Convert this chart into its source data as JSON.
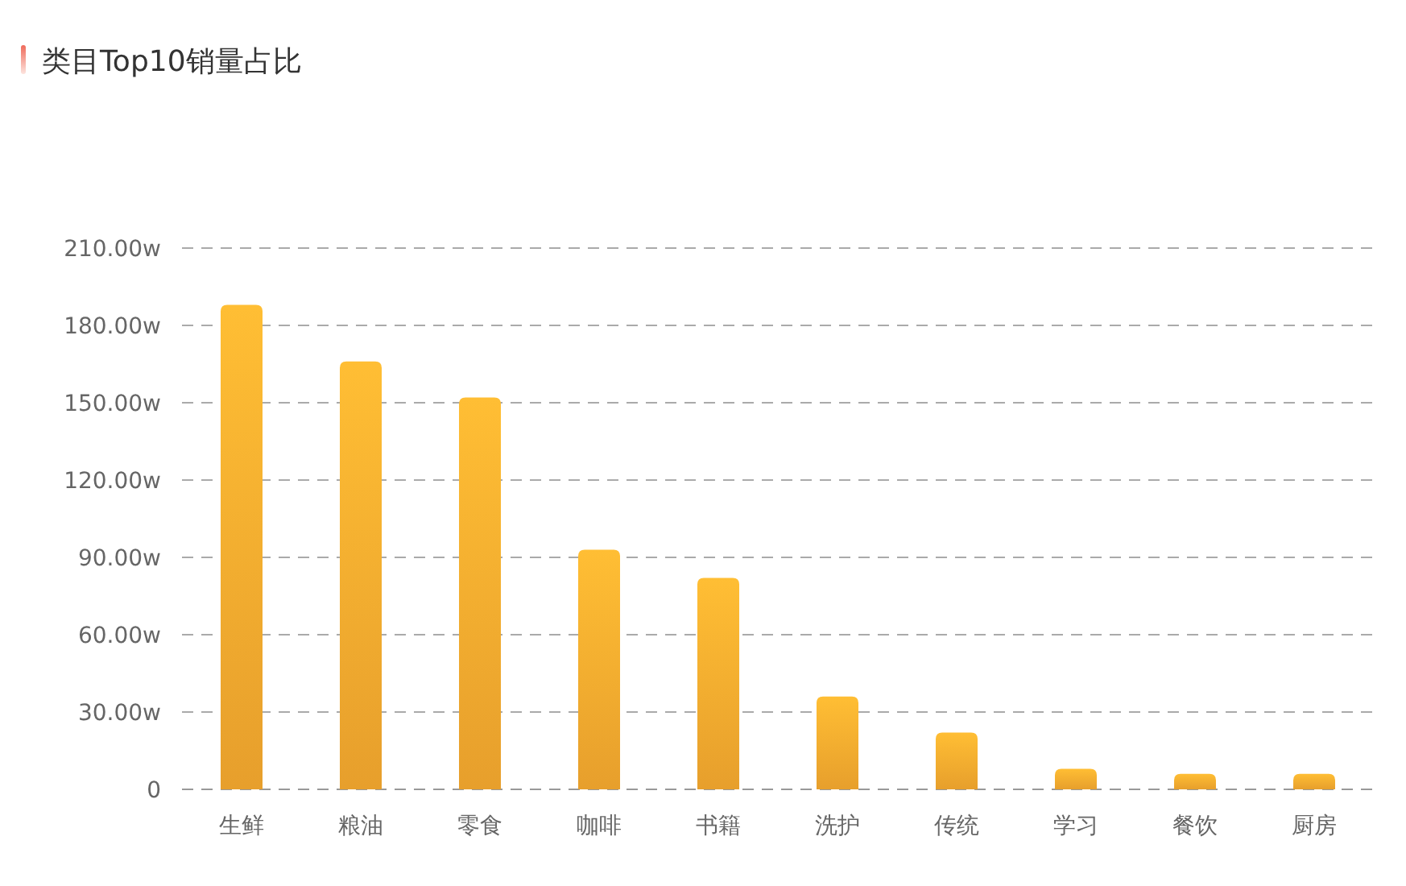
{
  "chart_data": {
    "type": "bar",
    "title": "类目Top10销量占比",
    "categories": [
      "生鲜",
      "粮油",
      "零食",
      "咖啡",
      "书籍",
      "洗护",
      "传统",
      "学习",
      "餐饮",
      "厨房"
    ],
    "values": [
      188,
      166,
      152,
      93,
      82,
      36,
      22,
      8,
      6,
      6
    ],
    "color": "#f4a82e",
    "ylim": [
      0,
      210
    ],
    "yticks": [
      0,
      {
        "value": 30,
        "label": "30.00w"
      },
      {
        "value": 60,
        "label": "60.00w"
      },
      {
        "value": 90,
        "label": "90.00w"
      },
      {
        "value": 120,
        "label": "120.00w"
      },
      {
        "value": 150,
        "label": "150.00w"
      },
      {
        "value": 180,
        "label": "180.00w"
      },
      {
        "value": 210,
        "label": "210.00w"
      }
    ],
    "grid": "y"
  }
}
